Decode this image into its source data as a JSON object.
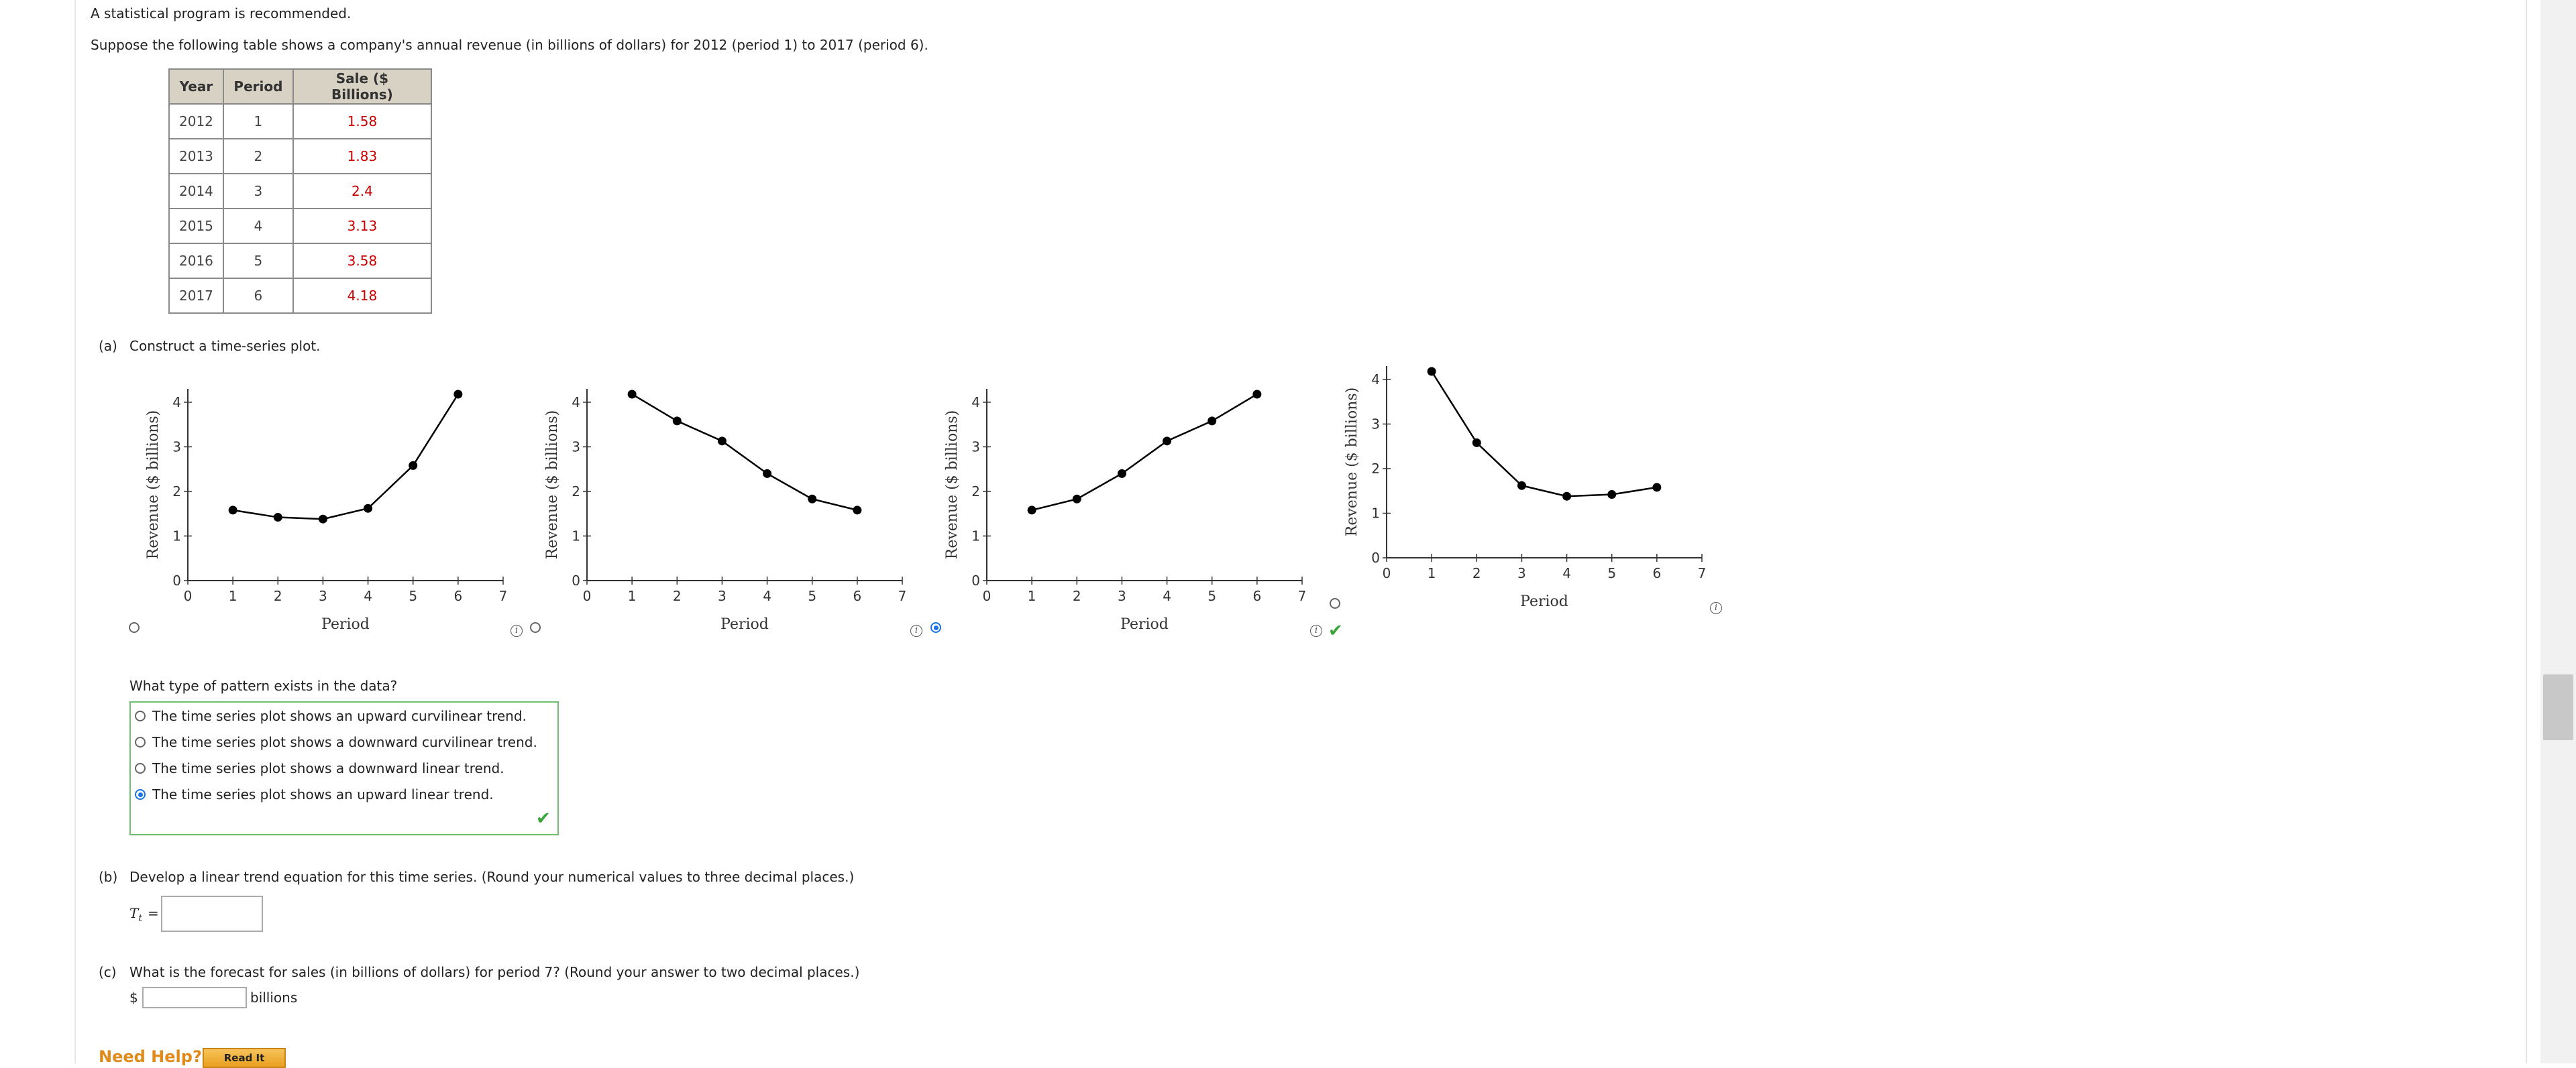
{
  "intro": {
    "note": "A statistical program is recommended.",
    "problem": "Suppose the following table shows a company's annual revenue (in billions of dollars) for 2012 (period 1) to 2017 (period 6)."
  },
  "table": {
    "headers": [
      "Year",
      "Period",
      "Sale ($ Billions)"
    ],
    "rows": [
      [
        "2012",
        "1",
        "1.58"
      ],
      [
        "2013",
        "2",
        "1.83"
      ],
      [
        "2014",
        "3",
        "2.4"
      ],
      [
        "2015",
        "4",
        "3.13"
      ],
      [
        "2016",
        "5",
        "3.58"
      ],
      [
        "2017",
        "6",
        "4.18"
      ]
    ],
    "value_color": "#c80000"
  },
  "part_a": {
    "label": "(a)",
    "prompt": "Construct a time-series plot.",
    "selected_plot": 3,
    "pattern_question": "What type of pattern exists in the data?",
    "options": [
      "The time series plot shows an upward curvilinear trend.",
      "The time series plot shows a downward curvilinear trend.",
      "The time series plot shows a downward linear trend.",
      "The time series plot shows an upward linear trend."
    ],
    "selected_option": 4
  },
  "chart_data": [
    {
      "type": "line",
      "xlabel": "Period",
      "ylabel": "Revenue ($ billions)",
      "xlim": [
        0,
        7
      ],
      "ylim": [
        0,
        4.3
      ],
      "x_ticks": [
        "0",
        "1",
        "2",
        "3",
        "4",
        "5",
        "6",
        "7"
      ],
      "y_ticks": [
        "0",
        "1",
        "2",
        "3",
        "4"
      ],
      "x": [
        1,
        2,
        3,
        4,
        5,
        6
      ],
      "y": [
        1.58,
        1.42,
        1.38,
        1.62,
        2.58,
        4.18
      ]
    },
    {
      "type": "line",
      "xlabel": "Period",
      "ylabel": "Revenue ($ billions)",
      "xlim": [
        0,
        7
      ],
      "ylim": [
        0,
        4.3
      ],
      "x_ticks": [
        "0",
        "1",
        "2",
        "3",
        "4",
        "5",
        "6",
        "7"
      ],
      "y_ticks": [
        "0",
        "1",
        "2",
        "3",
        "4"
      ],
      "x": [
        1,
        2,
        3,
        4,
        5,
        6
      ],
      "y": [
        4.18,
        3.58,
        3.13,
        2.4,
        1.83,
        1.58
      ]
    },
    {
      "type": "line",
      "xlabel": "Period",
      "ylabel": "Revenue ($ billions)",
      "xlim": [
        0,
        7
      ],
      "ylim": [
        0,
        4.3
      ],
      "x_ticks": [
        "0",
        "1",
        "2",
        "3",
        "4",
        "5",
        "6",
        "7"
      ],
      "y_ticks": [
        "0",
        "1",
        "2",
        "3",
        "4"
      ],
      "x": [
        1,
        2,
        3,
        4,
        5,
        6
      ],
      "y": [
        1.58,
        1.83,
        2.4,
        3.13,
        3.58,
        4.18
      ]
    },
    {
      "type": "line",
      "xlabel": "Period",
      "ylabel": "Revenue ($ billions)",
      "xlim": [
        0,
        7
      ],
      "ylim": [
        0,
        4.3
      ],
      "x_ticks": [
        "0",
        "1",
        "2",
        "3",
        "4",
        "5",
        "6",
        "7"
      ],
      "y_ticks": [
        "0",
        "1",
        "2",
        "3",
        "4"
      ],
      "x": [
        1,
        2,
        3,
        4,
        5,
        6
      ],
      "y": [
        4.18,
        2.58,
        1.62,
        1.38,
        1.42,
        1.58
      ]
    }
  ],
  "part_b": {
    "label": "(b)",
    "prompt": "Develop a linear trend equation for this time series. (Round your numerical values to three decimal places.)",
    "var_main": "T",
    "var_sub": "t",
    "equals": "=",
    "value": ""
  },
  "part_c": {
    "label": "(c)",
    "prompt": "What is the forecast for sales (in billions of dollars) for period 7? (Round your answer to two decimal places.)",
    "currency": "$",
    "unit": "billions",
    "value": ""
  },
  "help": {
    "text": "Need Help?",
    "read_it": "Read It"
  },
  "icons": {
    "info": "i",
    "check": "✔"
  }
}
